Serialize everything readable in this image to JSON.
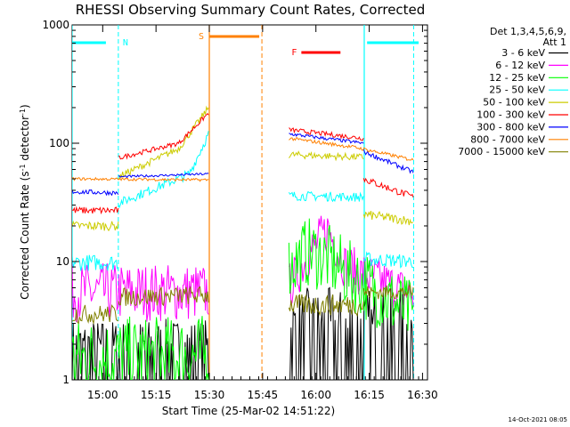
{
  "chart_data": {
    "type": "line",
    "title": "RHESSI Observing Summary Count Rates, Corrected",
    "xlabel": "Start Time (25-Mar-02 14:51:22)",
    "ylabel": "Corrected Count Rate (s-1 detector-1)",
    "y_scale": "log",
    "ylim": [
      1,
      1000
    ],
    "xlim": [
      0,
      100
    ],
    "x_ticks": [
      {
        "value": 8.6,
        "label": "15:00"
      },
      {
        "value": 23.6,
        "label": "15:15"
      },
      {
        "value": 38.6,
        "label": "15:30"
      },
      {
        "value": 53.6,
        "label": "15:45"
      },
      {
        "value": 68.6,
        "label": "16:00"
      },
      {
        "value": 83.6,
        "label": "16:15"
      },
      {
        "value": 98.6,
        "label": "16:30"
      }
    ],
    "y_ticks": [
      {
        "value": 1,
        "label": "1"
      },
      {
        "value": 10,
        "label": "10"
      },
      {
        "value": 100,
        "label": "100"
      },
      {
        "value": 1000,
        "label": "1000"
      }
    ],
    "legend_title": [
      "Det 1,3,4,5,6,9,",
      "Att 1"
    ],
    "legend_placement": "right",
    "series": [
      {
        "name": "3 - 6 keV",
        "color": "#000000",
        "segments": [
          {
            "x": [
              0,
              38.4
            ],
            "y": [
              1,
              1
            ],
            "noise": 2.5,
            "mode": "bursty"
          },
          {
            "x": [
              61,
              96
            ],
            "y": [
              1,
              1
            ],
            "noise": 4,
            "mode": "bursty"
          }
        ]
      },
      {
        "name": "6 - 12 keV",
        "color": "#ff00ff",
        "segments": [
          {
            "x": [
              0,
              38.4
            ],
            "y": [
              5.5,
              5.5
            ],
            "noise": 0.25
          },
          {
            "x": [
              61,
              67,
              72,
              77,
              96
            ],
            "y": [
              6,
              12,
              19,
              9,
              5.2
            ],
            "noise": 0.2
          }
        ]
      },
      {
        "name": "12 - 25 keV",
        "color": "#00ff00",
        "segments": [
          {
            "x": [
              0,
              38.4
            ],
            "y": [
              1.5,
              1.6
            ],
            "noise": 0.35
          },
          {
            "x": [
              61,
              66,
              71,
              77,
              96
            ],
            "y": [
              9,
              12,
              11,
              8,
              3.5
            ],
            "noise": 0.3
          }
        ]
      },
      {
        "name": "25 - 50 keV",
        "color": "#00ffff",
        "segments": [
          {
            "x": [
              0,
              13
            ],
            "y": [
              9.8,
              9.8
            ],
            "noise": 0.07
          },
          {
            "x": [
              13,
              33,
              38.4
            ],
            "y": [
              31,
              55,
              120
            ],
            "noise": 0.04
          },
          {
            "x": [
              61,
              82
            ],
            "y": [
              36,
              35
            ],
            "noise": 0.04
          },
          {
            "x": [
              82,
              96
            ],
            "y": [
              10.5,
              10
            ],
            "noise": 0.06
          }
        ]
      },
      {
        "name": "50 - 100 keV",
        "color": "#cccc00",
        "segments": [
          {
            "x": [
              0,
              13
            ],
            "y": [
              20,
              20
            ],
            "noise": 0.04
          },
          {
            "x": [
              13,
              30,
              38.4
            ],
            "y": [
              52,
              90,
              200
            ],
            "noise": 0.03
          },
          {
            "x": [
              61,
              82
            ],
            "y": [
              80,
              76
            ],
            "noise": 0.03
          },
          {
            "x": [
              82,
              96
            ],
            "y": [
              25,
              22
            ],
            "noise": 0.04
          }
        ]
      },
      {
        "name": "100 - 300 keV",
        "color": "#ff0000",
        "segments": [
          {
            "x": [
              0,
              13
            ],
            "y": [
              27,
              27
            ],
            "noise": 0.03
          },
          {
            "x": [
              13,
              30,
              38.4
            ],
            "y": [
              75,
              100,
              180
            ],
            "noise": 0.02
          },
          {
            "x": [
              61,
              82
            ],
            "y": [
              130,
              110
            ],
            "noise": 0.02
          },
          {
            "x": [
              82,
              96
            ],
            "y": [
              50,
              35
            ],
            "noise": 0.03
          }
        ]
      },
      {
        "name": "300 - 800 keV",
        "color": "#0000ff",
        "segments": [
          {
            "x": [
              0,
              13
            ],
            "y": [
              39,
              38
            ],
            "noise": 0.02
          },
          {
            "x": [
              13,
              38.4
            ],
            "y": [
              52,
              55
            ],
            "noise": 0.01
          },
          {
            "x": [
              61,
              82
            ],
            "y": [
              120,
              100
            ],
            "noise": 0.015
          },
          {
            "x": [
              82,
              96
            ],
            "y": [
              85,
              57
            ],
            "noise": 0.02
          }
        ]
      },
      {
        "name": "800 - 7000 keV",
        "color": "#ff8000",
        "segments": [
          {
            "x": [
              0,
              38.4
            ],
            "y": [
              50,
              49
            ],
            "noise": 0.012
          },
          {
            "x": [
              61,
              80,
              96
            ],
            "y": [
              110,
              92,
              72
            ],
            "noise": 0.015
          }
        ]
      },
      {
        "name": "7000 - 15000 keV",
        "color": "#808000",
        "segments": [
          {
            "x": [
              0,
              13
            ],
            "y": [
              3.6,
              3.6
            ],
            "noise": 0.08
          },
          {
            "x": [
              13,
              38.4
            ],
            "y": [
              5,
              5.2
            ],
            "noise": 0.08
          },
          {
            "x": [
              61,
              82
            ],
            "y": [
              4.3,
              4.3
            ],
            "noise": 0.09
          },
          {
            "x": [
              82,
              96
            ],
            "y": [
              5.5,
              5.5
            ],
            "noise": 0.06
          }
        ]
      }
    ],
    "intervals": [
      {
        "label": "N",
        "color": "#00ffff",
        "start": 13,
        "end": 82.2
      },
      {
        "label": "S",
        "color": "#ff8000",
        "start": 38.6,
        "end": 53.4
      },
      {
        "label": "F",
        "color": "#ff0000",
        "start": 61.5,
        "end": 72.5
      }
    ],
    "timestamp": "14-Oct-2021 08:05"
  }
}
